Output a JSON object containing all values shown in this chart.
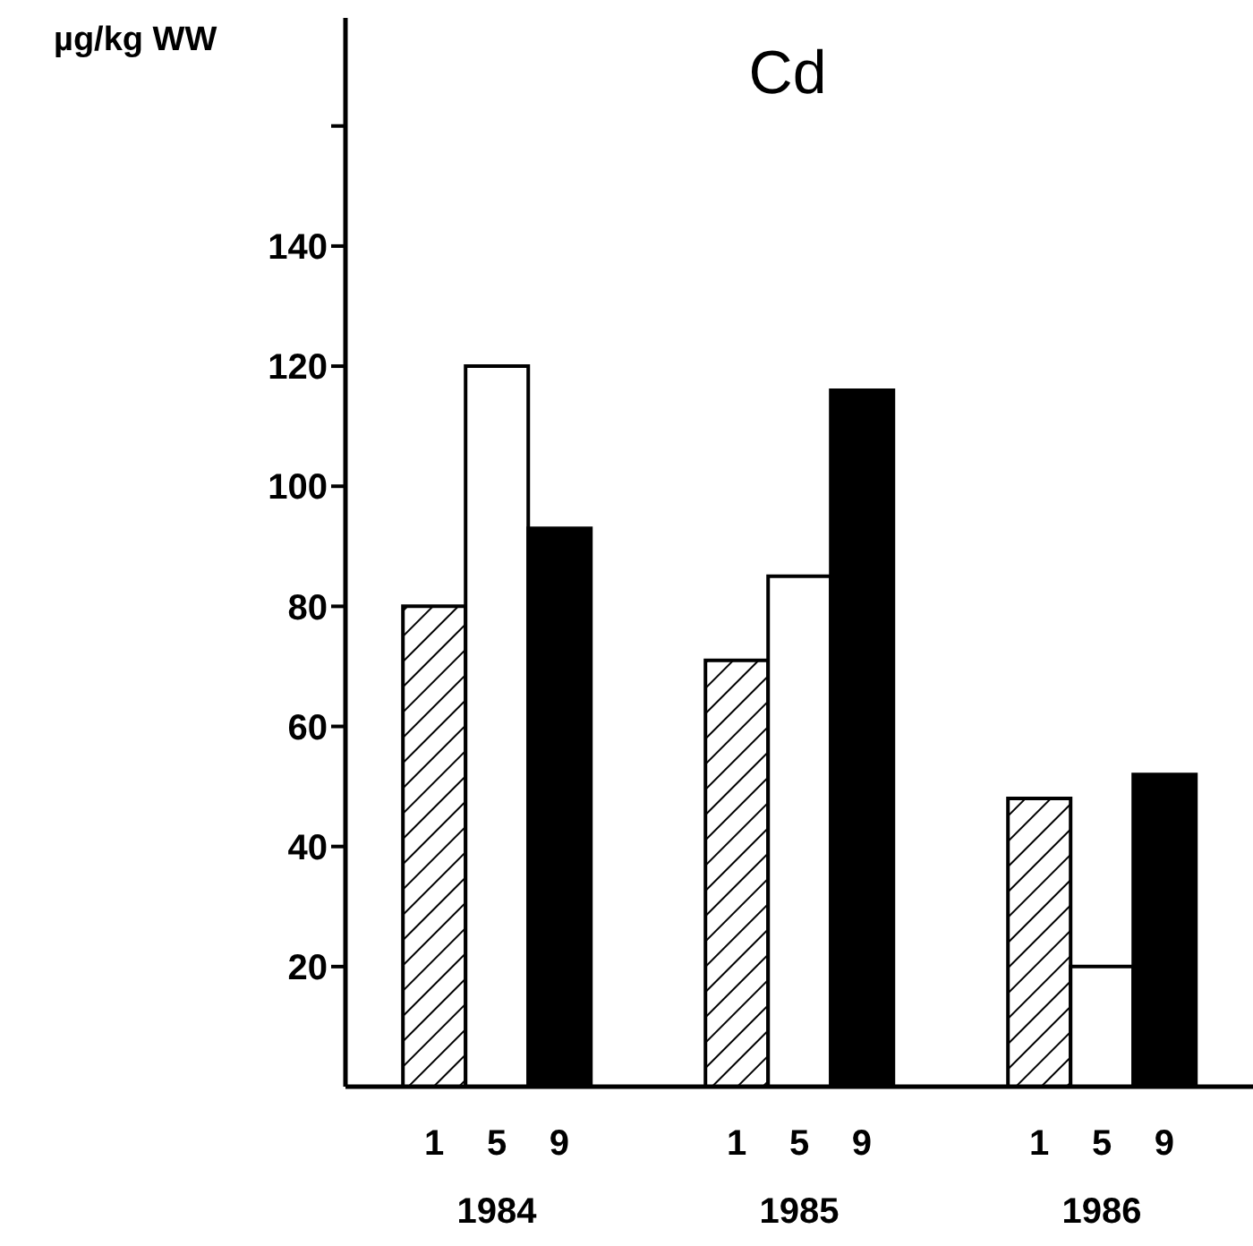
{
  "chart_data": {
    "type": "bar",
    "title": "Cd",
    "ylabel": "µg/kg WW",
    "categories": [
      "1984",
      "1985",
      "1986"
    ],
    "series": [
      {
        "name": "1",
        "color": "#000000",
        "values": [
          80,
          71,
          48
        ]
      },
      {
        "name": "5",
        "color": "#ffffff",
        "values": [
          120,
          85,
          20
        ]
      },
      {
        "name": "9",
        "color": "#000000",
        "values": [
          93,
          116,
          52
        ]
      }
    ],
    "ylim": [
      0,
      178
    ],
    "yticks": [
      20,
      40,
      60,
      80,
      100,
      120,
      140,
      {
        "value": 160,
        "label": null
      }
    ]
  }
}
